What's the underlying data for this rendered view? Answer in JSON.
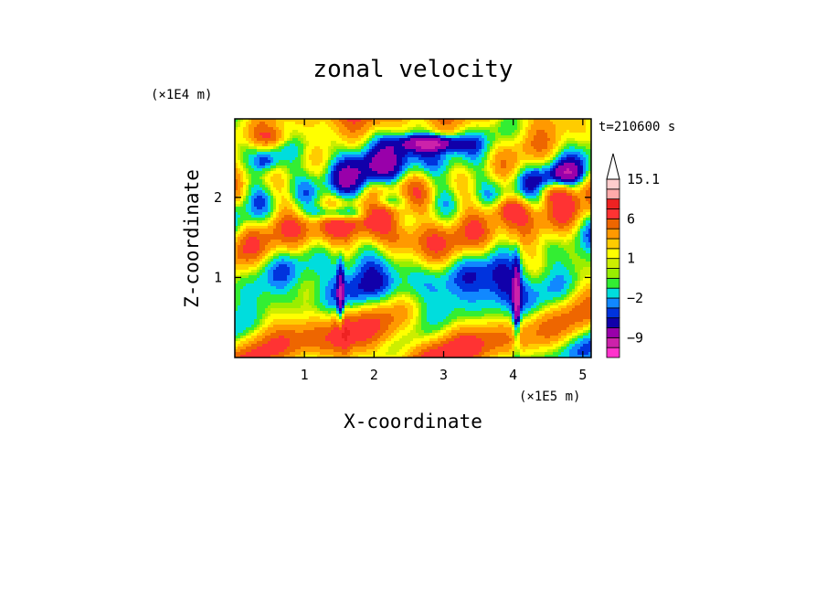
{
  "chart_data": {
    "type": "heatmap",
    "title": "zonal velocity",
    "xlabel": "X-coordinate",
    "ylabel": "Z-coordinate",
    "x_units": "(×1E5 m)",
    "y_units": "(×1E4 m)",
    "time_label": "t=210600 s",
    "xlim": [
      0,
      5.12
    ],
    "ylim": [
      0,
      2.98
    ],
    "x_ticks": [
      {
        "value": 1,
        "label": "1"
      },
      {
        "value": 2,
        "label": "2"
      },
      {
        "value": 3,
        "label": "3"
      },
      {
        "value": 4,
        "label": "4"
      },
      {
        "value": 5,
        "label": "5"
      }
    ],
    "y_ticks": [
      {
        "value": 1,
        "label": "1"
      },
      {
        "value": 2,
        "label": "2"
      }
    ],
    "colorbar": {
      "levels": [
        -15,
        -12,
        -9,
        -6,
        -4,
        -3,
        -2,
        -1,
        0,
        0.5,
        1,
        2,
        3,
        4.5,
        6,
        9,
        12,
        15.1
      ],
      "colors": [
        "#ff33cc",
        "#cc22aa",
        "#9900aa",
        "#1100aa",
        "#0033dd",
        "#1188ff",
        "#00dddd",
        "#33ee33",
        "#99ee00",
        "#ccee00",
        "#ffff00",
        "#ffcc00",
        "#ff9900",
        "#ee6600",
        "#ff3333",
        "#ee2222",
        "#ffaaaa",
        "#ffcccc"
      ],
      "labels": [
        {
          "value": 15.1,
          "label": "15.1"
        },
        {
          "value": 6,
          "label": "6"
        },
        {
          "value": 1,
          "label": "1"
        },
        {
          "value": -2,
          "label": "−2"
        },
        {
          "value": -9,
          "label": "−9"
        }
      ],
      "extend": "max"
    },
    "field_description": "wavy shaded contours of zonal velocity with orange/yellow positive bands and green/blue negative bands, strong negative columns near x=1.5 and x=4.0"
  }
}
